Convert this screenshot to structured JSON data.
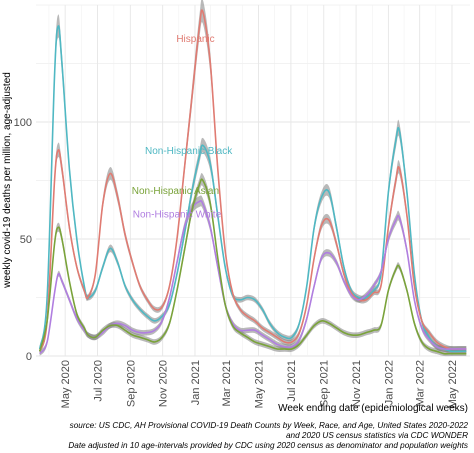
{
  "chart_data": {
    "type": "line",
    "title": "",
    "xlabel": "Week ending date (epidemiological weeks)",
    "ylabel": "weekly covid-19 deaths per million, age-adjusted",
    "ylim": [
      0,
      150
    ],
    "y_ticks": [
      0,
      50,
      100
    ],
    "x_ticks": [
      {
        "label": "May 2020",
        "date": "2020-05-01"
      },
      {
        "label": "Jul 2020",
        "date": "2020-07-01"
      },
      {
        "label": "Sep 2020",
        "date": "2020-09-01"
      },
      {
        "label": "Nov 2020",
        "date": "2020-11-01"
      },
      {
        "label": "Jan 2021",
        "date": "2021-01-01"
      },
      {
        "label": "Mar 2021",
        "date": "2021-03-01"
      },
      {
        "label": "May 2021",
        "date": "2021-05-01"
      },
      {
        "label": "Jul 2021",
        "date": "2021-07-01"
      },
      {
        "label": "Sep 2021",
        "date": "2021-09-01"
      },
      {
        "label": "Nov 2021",
        "date": "2021-11-01"
      },
      {
        "label": "Jan 2022",
        "date": "2022-01-01"
      },
      {
        "label": "Mar 2022",
        "date": "2022-03-01"
      },
      {
        "label": "May 2022",
        "date": "2022-05-01"
      }
    ],
    "xlim": [
      "2020-03-07",
      "2022-06-04"
    ],
    "grid": true,
    "legend": "none (labels placed on chart)",
    "series": [
      {
        "name": "Hispanic",
        "color": "#e07b72",
        "points": [
          [
            "2020-03-14",
            2
          ],
          [
            "2020-03-28",
            15
          ],
          [
            "2020-04-11",
            75
          ],
          [
            "2020-04-18",
            88
          ],
          [
            "2020-04-25",
            80
          ],
          [
            "2020-05-09",
            55
          ],
          [
            "2020-05-23",
            38
          ],
          [
            "2020-06-06",
            28
          ],
          [
            "2020-06-13",
            25
          ],
          [
            "2020-06-27",
            35
          ],
          [
            "2020-07-11",
            65
          ],
          [
            "2020-07-25",
            78
          ],
          [
            "2020-08-08",
            68
          ],
          [
            "2020-08-22",
            52
          ],
          [
            "2020-09-05",
            40
          ],
          [
            "2020-09-19",
            30
          ],
          [
            "2020-10-03",
            24
          ],
          [
            "2020-10-17",
            20
          ],
          [
            "2020-10-31",
            21
          ],
          [
            "2020-11-14",
            30
          ],
          [
            "2020-11-28",
            50
          ],
          [
            "2020-12-12",
            80
          ],
          [
            "2020-12-26",
            110
          ],
          [
            "2021-01-09",
            140
          ],
          [
            "2021-01-16",
            147
          ],
          [
            "2021-01-30",
            125
          ],
          [
            "2021-02-13",
            80
          ],
          [
            "2021-02-27",
            45
          ],
          [
            "2021-03-13",
            27
          ],
          [
            "2021-03-27",
            20
          ],
          [
            "2021-04-10",
            17
          ],
          [
            "2021-04-24",
            15
          ],
          [
            "2021-05-08",
            12
          ],
          [
            "2021-05-22",
            10
          ],
          [
            "2021-06-05",
            8
          ],
          [
            "2021-06-19",
            6
          ],
          [
            "2021-07-03",
            6
          ],
          [
            "2021-07-17",
            10
          ],
          [
            "2021-07-31",
            22
          ],
          [
            "2021-08-14",
            42
          ],
          [
            "2021-08-28",
            56
          ],
          [
            "2021-09-11",
            58
          ],
          [
            "2021-09-25",
            48
          ],
          [
            "2021-10-09",
            35
          ],
          [
            "2021-10-23",
            27
          ],
          [
            "2021-11-06",
            24
          ],
          [
            "2021-11-20",
            24
          ],
          [
            "2021-12-04",
            27
          ],
          [
            "2021-12-18",
            30
          ],
          [
            "2022-01-01",
            55
          ],
          [
            "2022-01-15",
            75
          ],
          [
            "2022-01-22",
            80
          ],
          [
            "2022-02-05",
            60
          ],
          [
            "2022-02-19",
            30
          ],
          [
            "2022-03-05",
            15
          ],
          [
            "2022-03-19",
            10
          ],
          [
            "2022-04-02",
            6
          ],
          [
            "2022-04-16",
            4
          ],
          [
            "2022-04-30",
            3
          ],
          [
            "2022-05-14",
            3
          ],
          [
            "2022-05-28",
            3
          ]
        ]
      },
      {
        "name": "Non-Hispanic Black",
        "color": "#4fb8c3",
        "points": [
          [
            "2020-03-14",
            3
          ],
          [
            "2020-03-28",
            25
          ],
          [
            "2020-04-11",
            120
          ],
          [
            "2020-04-18",
            141
          ],
          [
            "2020-04-25",
            125
          ],
          [
            "2020-05-09",
            80
          ],
          [
            "2020-05-23",
            50
          ],
          [
            "2020-06-06",
            30
          ],
          [
            "2020-06-13",
            25
          ],
          [
            "2020-06-27",
            28
          ],
          [
            "2020-07-11",
            38
          ],
          [
            "2020-07-25",
            46
          ],
          [
            "2020-08-08",
            40
          ],
          [
            "2020-08-22",
            30
          ],
          [
            "2020-09-05",
            24
          ],
          [
            "2020-09-19",
            20
          ],
          [
            "2020-10-03",
            17
          ],
          [
            "2020-10-17",
            15
          ],
          [
            "2020-10-31",
            17
          ],
          [
            "2020-11-14",
            22
          ],
          [
            "2020-11-28",
            35
          ],
          [
            "2020-12-12",
            52
          ],
          [
            "2020-12-26",
            70
          ],
          [
            "2021-01-09",
            85
          ],
          [
            "2021-01-16",
            90
          ],
          [
            "2021-01-30",
            82
          ],
          [
            "2021-02-13",
            60
          ],
          [
            "2021-02-27",
            38
          ],
          [
            "2021-03-13",
            26
          ],
          [
            "2021-03-27",
            24
          ],
          [
            "2021-04-10",
            25
          ],
          [
            "2021-04-24",
            24
          ],
          [
            "2021-05-08",
            20
          ],
          [
            "2021-05-22",
            14
          ],
          [
            "2021-06-05",
            10
          ],
          [
            "2021-06-19",
            8
          ],
          [
            "2021-07-03",
            8
          ],
          [
            "2021-07-17",
            14
          ],
          [
            "2021-07-31",
            30
          ],
          [
            "2021-08-14",
            55
          ],
          [
            "2021-08-28",
            68
          ],
          [
            "2021-09-11",
            70
          ],
          [
            "2021-09-25",
            55
          ],
          [
            "2021-10-09",
            38
          ],
          [
            "2021-10-23",
            28
          ],
          [
            "2021-11-06",
            25
          ],
          [
            "2021-11-20",
            25
          ],
          [
            "2021-12-04",
            28
          ],
          [
            "2021-12-18",
            35
          ],
          [
            "2022-01-01",
            70
          ],
          [
            "2022-01-15",
            92
          ],
          [
            "2022-01-22",
            96
          ],
          [
            "2022-02-05",
            70
          ],
          [
            "2022-02-19",
            35
          ],
          [
            "2022-03-05",
            15
          ],
          [
            "2022-03-19",
            8
          ],
          [
            "2022-04-02",
            4
          ],
          [
            "2022-04-16",
            3
          ],
          [
            "2022-04-30",
            2
          ],
          [
            "2022-05-14",
            2
          ],
          [
            "2022-05-28",
            2
          ]
        ]
      },
      {
        "name": "Non-Hispanic Asian",
        "color": "#7aa33a",
        "points": [
          [
            "2020-03-14",
            2
          ],
          [
            "2020-03-28",
            15
          ],
          [
            "2020-04-11",
            48
          ],
          [
            "2020-04-18",
            55
          ],
          [
            "2020-04-25",
            50
          ],
          [
            "2020-05-09",
            32
          ],
          [
            "2020-05-23",
            18
          ],
          [
            "2020-06-06",
            12
          ],
          [
            "2020-06-13",
            9
          ],
          [
            "2020-06-27",
            8
          ],
          [
            "2020-07-11",
            11
          ],
          [
            "2020-07-25",
            13
          ],
          [
            "2020-08-08",
            13
          ],
          [
            "2020-08-22",
            11
          ],
          [
            "2020-09-05",
            9
          ],
          [
            "2020-09-19",
            8
          ],
          [
            "2020-10-03",
            7
          ],
          [
            "2020-10-17",
            6
          ],
          [
            "2020-10-31",
            8
          ],
          [
            "2020-11-14",
            14
          ],
          [
            "2020-11-28",
            28
          ],
          [
            "2020-12-12",
            45
          ],
          [
            "2020-12-26",
            62
          ],
          [
            "2021-01-09",
            73
          ],
          [
            "2021-01-16",
            75
          ],
          [
            "2021-01-30",
            65
          ],
          [
            "2021-02-13",
            42
          ],
          [
            "2021-02-27",
            22
          ],
          [
            "2021-03-13",
            13
          ],
          [
            "2021-03-27",
            10
          ],
          [
            "2021-04-10",
            8
          ],
          [
            "2021-04-24",
            6
          ],
          [
            "2021-05-08",
            5
          ],
          [
            "2021-05-22",
            4
          ],
          [
            "2021-06-05",
            3
          ],
          [
            "2021-06-19",
            3
          ],
          [
            "2021-07-03",
            3
          ],
          [
            "2021-07-17",
            5
          ],
          [
            "2021-07-31",
            9
          ],
          [
            "2021-08-14",
            13
          ],
          [
            "2021-08-28",
            15
          ],
          [
            "2021-09-11",
            14
          ],
          [
            "2021-09-25",
            12
          ],
          [
            "2021-10-09",
            10
          ],
          [
            "2021-10-23",
            9
          ],
          [
            "2021-11-06",
            9
          ],
          [
            "2021-11-20",
            10
          ],
          [
            "2021-12-04",
            11
          ],
          [
            "2021-12-18",
            13
          ],
          [
            "2022-01-01",
            28
          ],
          [
            "2022-01-15",
            37
          ],
          [
            "2022-01-22",
            38
          ],
          [
            "2022-02-05",
            28
          ],
          [
            "2022-02-19",
            14
          ],
          [
            "2022-03-05",
            6
          ],
          [
            "2022-03-19",
            3
          ],
          [
            "2022-04-02",
            2
          ],
          [
            "2022-04-16",
            1
          ],
          [
            "2022-04-30",
            1
          ],
          [
            "2022-05-14",
            1
          ],
          [
            "2022-05-28",
            1
          ]
        ]
      },
      {
        "name": "Non-Hispanic White",
        "color": "#b07ee0",
        "points": [
          [
            "2020-03-14",
            1
          ],
          [
            "2020-03-28",
            6
          ],
          [
            "2020-04-11",
            27
          ],
          [
            "2020-04-18",
            35
          ],
          [
            "2020-04-25",
            32
          ],
          [
            "2020-05-09",
            24
          ],
          [
            "2020-05-23",
            16
          ],
          [
            "2020-06-06",
            11
          ],
          [
            "2020-06-13",
            9
          ],
          [
            "2020-06-27",
            8
          ],
          [
            "2020-07-11",
            10
          ],
          [
            "2020-07-25",
            13
          ],
          [
            "2020-08-08",
            14
          ],
          [
            "2020-08-22",
            13
          ],
          [
            "2020-09-05",
            11
          ],
          [
            "2020-09-19",
            10
          ],
          [
            "2020-10-03",
            10
          ],
          [
            "2020-10-17",
            11
          ],
          [
            "2020-10-31",
            15
          ],
          [
            "2020-11-14",
            25
          ],
          [
            "2020-11-28",
            40
          ],
          [
            "2020-12-12",
            55
          ],
          [
            "2020-12-26",
            63
          ],
          [
            "2021-01-09",
            66
          ],
          [
            "2021-01-16",
            65
          ],
          [
            "2021-01-30",
            55
          ],
          [
            "2021-02-13",
            38
          ],
          [
            "2021-02-27",
            22
          ],
          [
            "2021-03-13",
            14
          ],
          [
            "2021-03-27",
            11
          ],
          [
            "2021-04-10",
            11
          ],
          [
            "2021-04-24",
            11
          ],
          [
            "2021-05-08",
            9
          ],
          [
            "2021-05-22",
            7
          ],
          [
            "2021-06-05",
            5
          ],
          [
            "2021-06-19",
            4
          ],
          [
            "2021-07-03",
            4
          ],
          [
            "2021-07-17",
            7
          ],
          [
            "2021-07-31",
            16
          ],
          [
            "2021-08-14",
            30
          ],
          [
            "2021-08-28",
            42
          ],
          [
            "2021-09-11",
            44
          ],
          [
            "2021-09-25",
            40
          ],
          [
            "2021-10-09",
            32
          ],
          [
            "2021-10-23",
            26
          ],
          [
            "2021-11-06",
            24
          ],
          [
            "2021-11-20",
            26
          ],
          [
            "2021-12-04",
            30
          ],
          [
            "2021-12-18",
            36
          ],
          [
            "2022-01-01",
            50
          ],
          [
            "2022-01-15",
            58
          ],
          [
            "2022-01-22",
            59
          ],
          [
            "2022-02-05",
            45
          ],
          [
            "2022-02-19",
            24
          ],
          [
            "2022-03-05",
            12
          ],
          [
            "2022-03-19",
            7
          ],
          [
            "2022-04-02",
            4
          ],
          [
            "2022-04-16",
            3
          ],
          [
            "2022-04-30",
            3
          ],
          [
            "2022-05-14",
            3
          ],
          [
            "2022-05-28",
            3
          ]
        ]
      }
    ],
    "caption_lines": [
      "source: US CDC, AH Provisional COVID-19 Death Counts by Week, Race, and Age, United States 2020-2022",
      "and 2020 US census statistics via CDC WONDER",
      "Date adjusted in 10 age-intervals provided by CDC using 2020 census as denominator and population weights"
    ]
  }
}
